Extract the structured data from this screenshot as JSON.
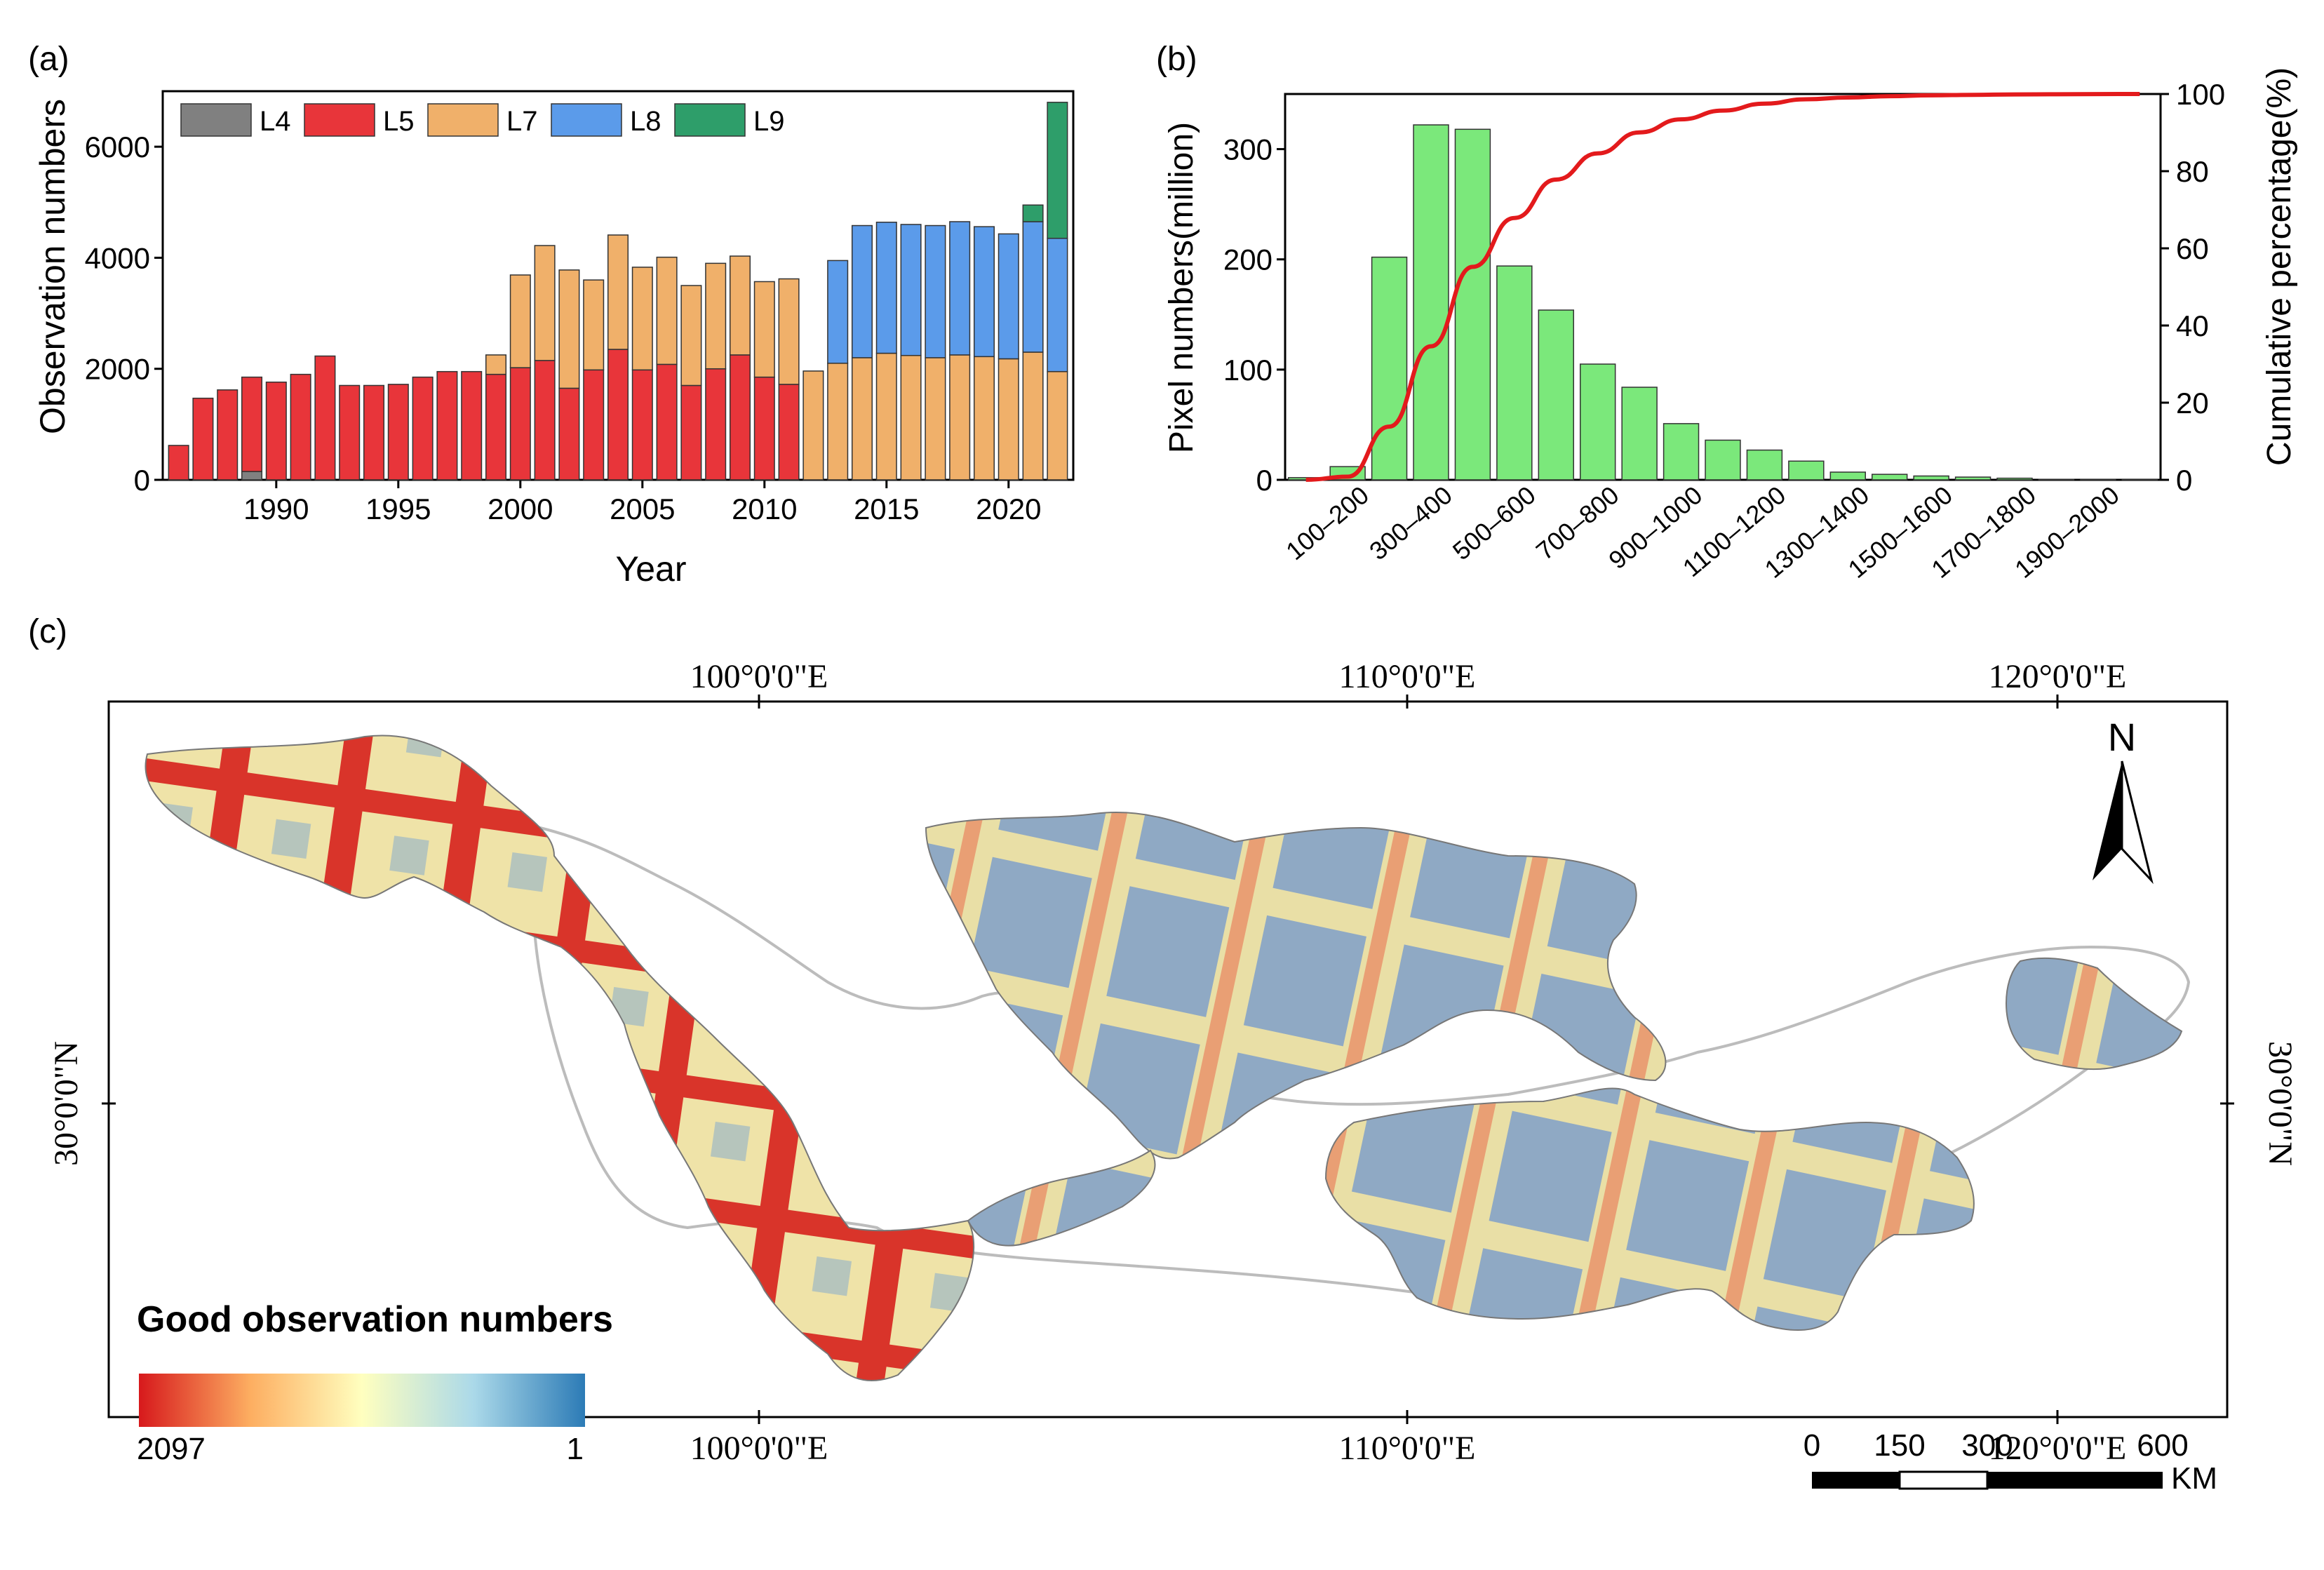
{
  "panel_a": {
    "label": "(a)",
    "chart_data": {
      "type": "bar",
      "stacked": true,
      "xlabel": "Year",
      "ylabel": "Observation numbers",
      "ylim": [
        0,
        7000
      ],
      "yticks": [
        0,
        2000,
        4000,
        6000
      ],
      "xticks": [
        1990,
        1995,
        2000,
        2005,
        2010,
        2015,
        2020
      ],
      "legend_position": "top-left",
      "categories": [
        1986,
        1987,
        1988,
        1989,
        1990,
        1991,
        1992,
        1993,
        1994,
        1995,
        1996,
        1997,
        1998,
        1999,
        2000,
        2001,
        2002,
        2003,
        2004,
        2005,
        2006,
        2007,
        2008,
        2009,
        2010,
        2011,
        2012,
        2013,
        2014,
        2015,
        2016,
        2017,
        2018,
        2019,
        2020,
        2021,
        2022
      ],
      "series": [
        {
          "name": "L4",
          "color": "#808080",
          "values": [
            0,
            0,
            0,
            150,
            0,
            0,
            0,
            0,
            0,
            0,
            0,
            0,
            0,
            0,
            0,
            0,
            0,
            0,
            0,
            0,
            0,
            0,
            0,
            0,
            0,
            0,
            0,
            0,
            0,
            0,
            0,
            0,
            0,
            0,
            0,
            0,
            0
          ]
        },
        {
          "name": "L5",
          "color": "#e8353a",
          "values": [
            620,
            1470,
            1620,
            1700,
            1760,
            1900,
            2230,
            1700,
            1700,
            1720,
            1850,
            1950,
            1950,
            1900,
            2020,
            2150,
            1650,
            1980,
            2350,
            1980,
            2080,
            1700,
            2000,
            2250,
            1850,
            1720,
            0,
            0,
            0,
            0,
            0,
            0,
            0,
            0,
            0,
            0,
            0
          ]
        },
        {
          "name": "L7",
          "color": "#f0b06a",
          "values": [
            0,
            0,
            0,
            0,
            0,
            0,
            0,
            0,
            0,
            0,
            0,
            0,
            0,
            350,
            1670,
            2070,
            2130,
            1620,
            2060,
            1850,
            1930,
            1800,
            1900,
            1780,
            1720,
            1900,
            1960,
            2100,
            2200,
            2280,
            2240,
            2200,
            2250,
            2220,
            2180,
            2300,
            1950
          ]
        },
        {
          "name": "L8",
          "color": "#5b9bea",
          "values": [
            0,
            0,
            0,
            0,
            0,
            0,
            0,
            0,
            0,
            0,
            0,
            0,
            0,
            0,
            0,
            0,
            0,
            0,
            0,
            0,
            0,
            0,
            0,
            0,
            0,
            0,
            0,
            1850,
            2380,
            2360,
            2360,
            2380,
            2400,
            2340,
            2250,
            2350,
            2400
          ]
        },
        {
          "name": "L9",
          "color": "#2e9e6a",
          "values": [
            0,
            0,
            0,
            0,
            0,
            0,
            0,
            0,
            0,
            0,
            0,
            0,
            0,
            0,
            0,
            0,
            0,
            0,
            0,
            0,
            0,
            0,
            0,
            0,
            0,
            0,
            0,
            0,
            0,
            0,
            0,
            0,
            0,
            0,
            0,
            300,
            2450
          ]
        }
      ]
    }
  },
  "panel_b": {
    "label": "(b)",
    "chart_data": {
      "type": "bar",
      "ylabel": "Pixel numbers(million)",
      "y2label": "Cumulative percentage(%)",
      "ylim": [
        0,
        350
      ],
      "y2lim": [
        0,
        100
      ],
      "yticks": [
        0,
        100,
        200,
        300
      ],
      "y2ticks": [
        0,
        20,
        40,
        60,
        80,
        100
      ],
      "categories": [
        "0-100",
        "100-200",
        "200-300",
        "300-400",
        "400-500",
        "500-600",
        "600-700",
        "700-800",
        "800-900",
        "900-1000",
        "1000-1100",
        "1100-1200",
        "1200-1300",
        "1300-1400",
        "1400-1500",
        "1500-1600",
        "1600-1700",
        "1700-1800",
        "1800-1900",
        "1900-2000",
        "2000-2100"
      ],
      "tick_labels": [
        "",
        "100–200",
        "",
        "300–400",
        "",
        "500–600",
        "",
        "700–800",
        "",
        "900–1000",
        "",
        "1100–1200",
        "",
        "1300–1400",
        "",
        "1500–1600",
        "",
        "1700–1800",
        "",
        "1900–2000",
        ""
      ],
      "values": [
        2,
        12,
        202,
        322,
        318,
        194,
        154,
        105,
        84,
        51,
        36,
        27,
        17,
        7,
        5,
        3.5,
        2.5,
        1.5,
        0.5,
        0.3,
        0.2
      ],
      "bar_color": "#7be87b",
      "line_color": "#e31a1c",
      "cumulative": [
        0.1,
        3.6,
        61,
        153,
        244,
        300,
        344,
        374,
        398,
        413,
        423,
        431,
        436,
        438,
        439.5,
        440.5,
        441,
        441.5,
        441.7,
        441.9,
        442
      ]
    }
  },
  "panel_c": {
    "label": "(c)",
    "top_lon_labels": [
      "100°0'0\"E",
      "110°0'0\"E",
      "120°0'0\"E"
    ],
    "bottom_lon_labels": [
      "100°0'0\"E",
      "110°0'0\"E",
      "120°0'0\"E"
    ],
    "lat_label_left": "30°0'0\"N",
    "lat_label_right": "30°0'0\"N",
    "north_label": "N",
    "legend_title": "Good observation numbers",
    "legend_max": "2097",
    "legend_min": "1",
    "colorbar_colors": [
      "#d7191c",
      "#fdae61",
      "#ffffbf",
      "#abd9e9",
      "#2c7bb6"
    ],
    "scale_labels": [
      "0",
      "150",
      "300",
      "600"
    ],
    "scale_unit": "KM"
  }
}
